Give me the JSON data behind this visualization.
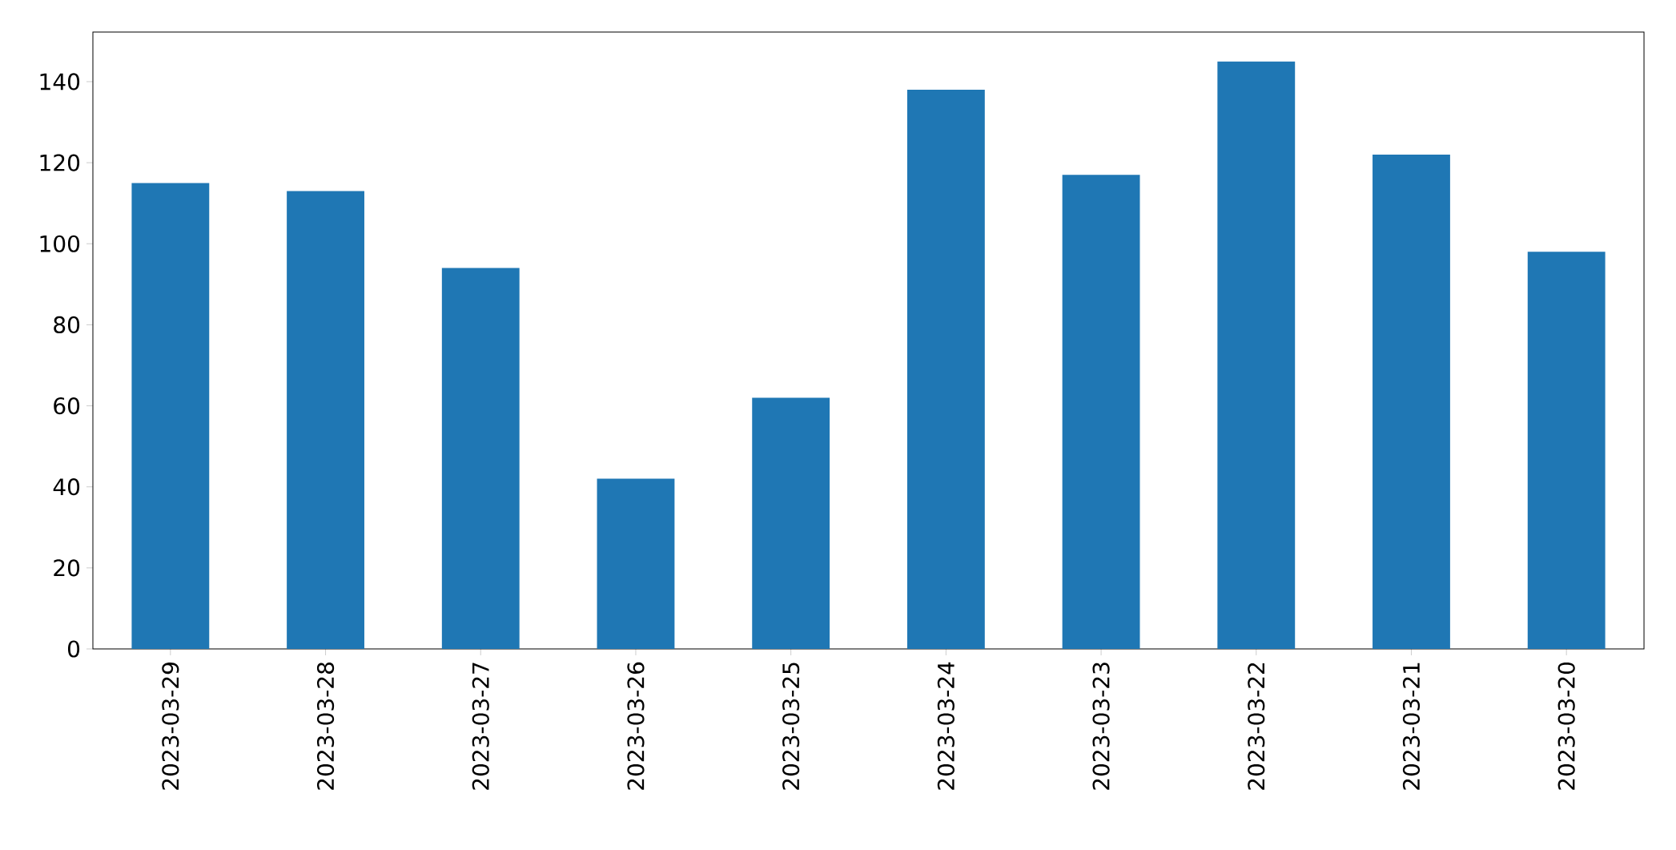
{
  "chart_data": {
    "type": "bar",
    "categories": [
      "2023-03-29",
      "2023-03-28",
      "2023-03-27",
      "2023-03-26",
      "2023-03-25",
      "2023-03-24",
      "2023-03-23",
      "2023-03-22",
      "2023-03-21",
      "2023-03-20"
    ],
    "values": [
      115,
      113,
      94,
      42,
      62,
      138,
      117,
      145,
      122,
      98
    ],
    "color": "#1f77b4",
    "ylim": [
      0,
      152.25
    ],
    "yticks": [
      0,
      20,
      40,
      60,
      80,
      100,
      120,
      140
    ],
    "grid": false
  }
}
